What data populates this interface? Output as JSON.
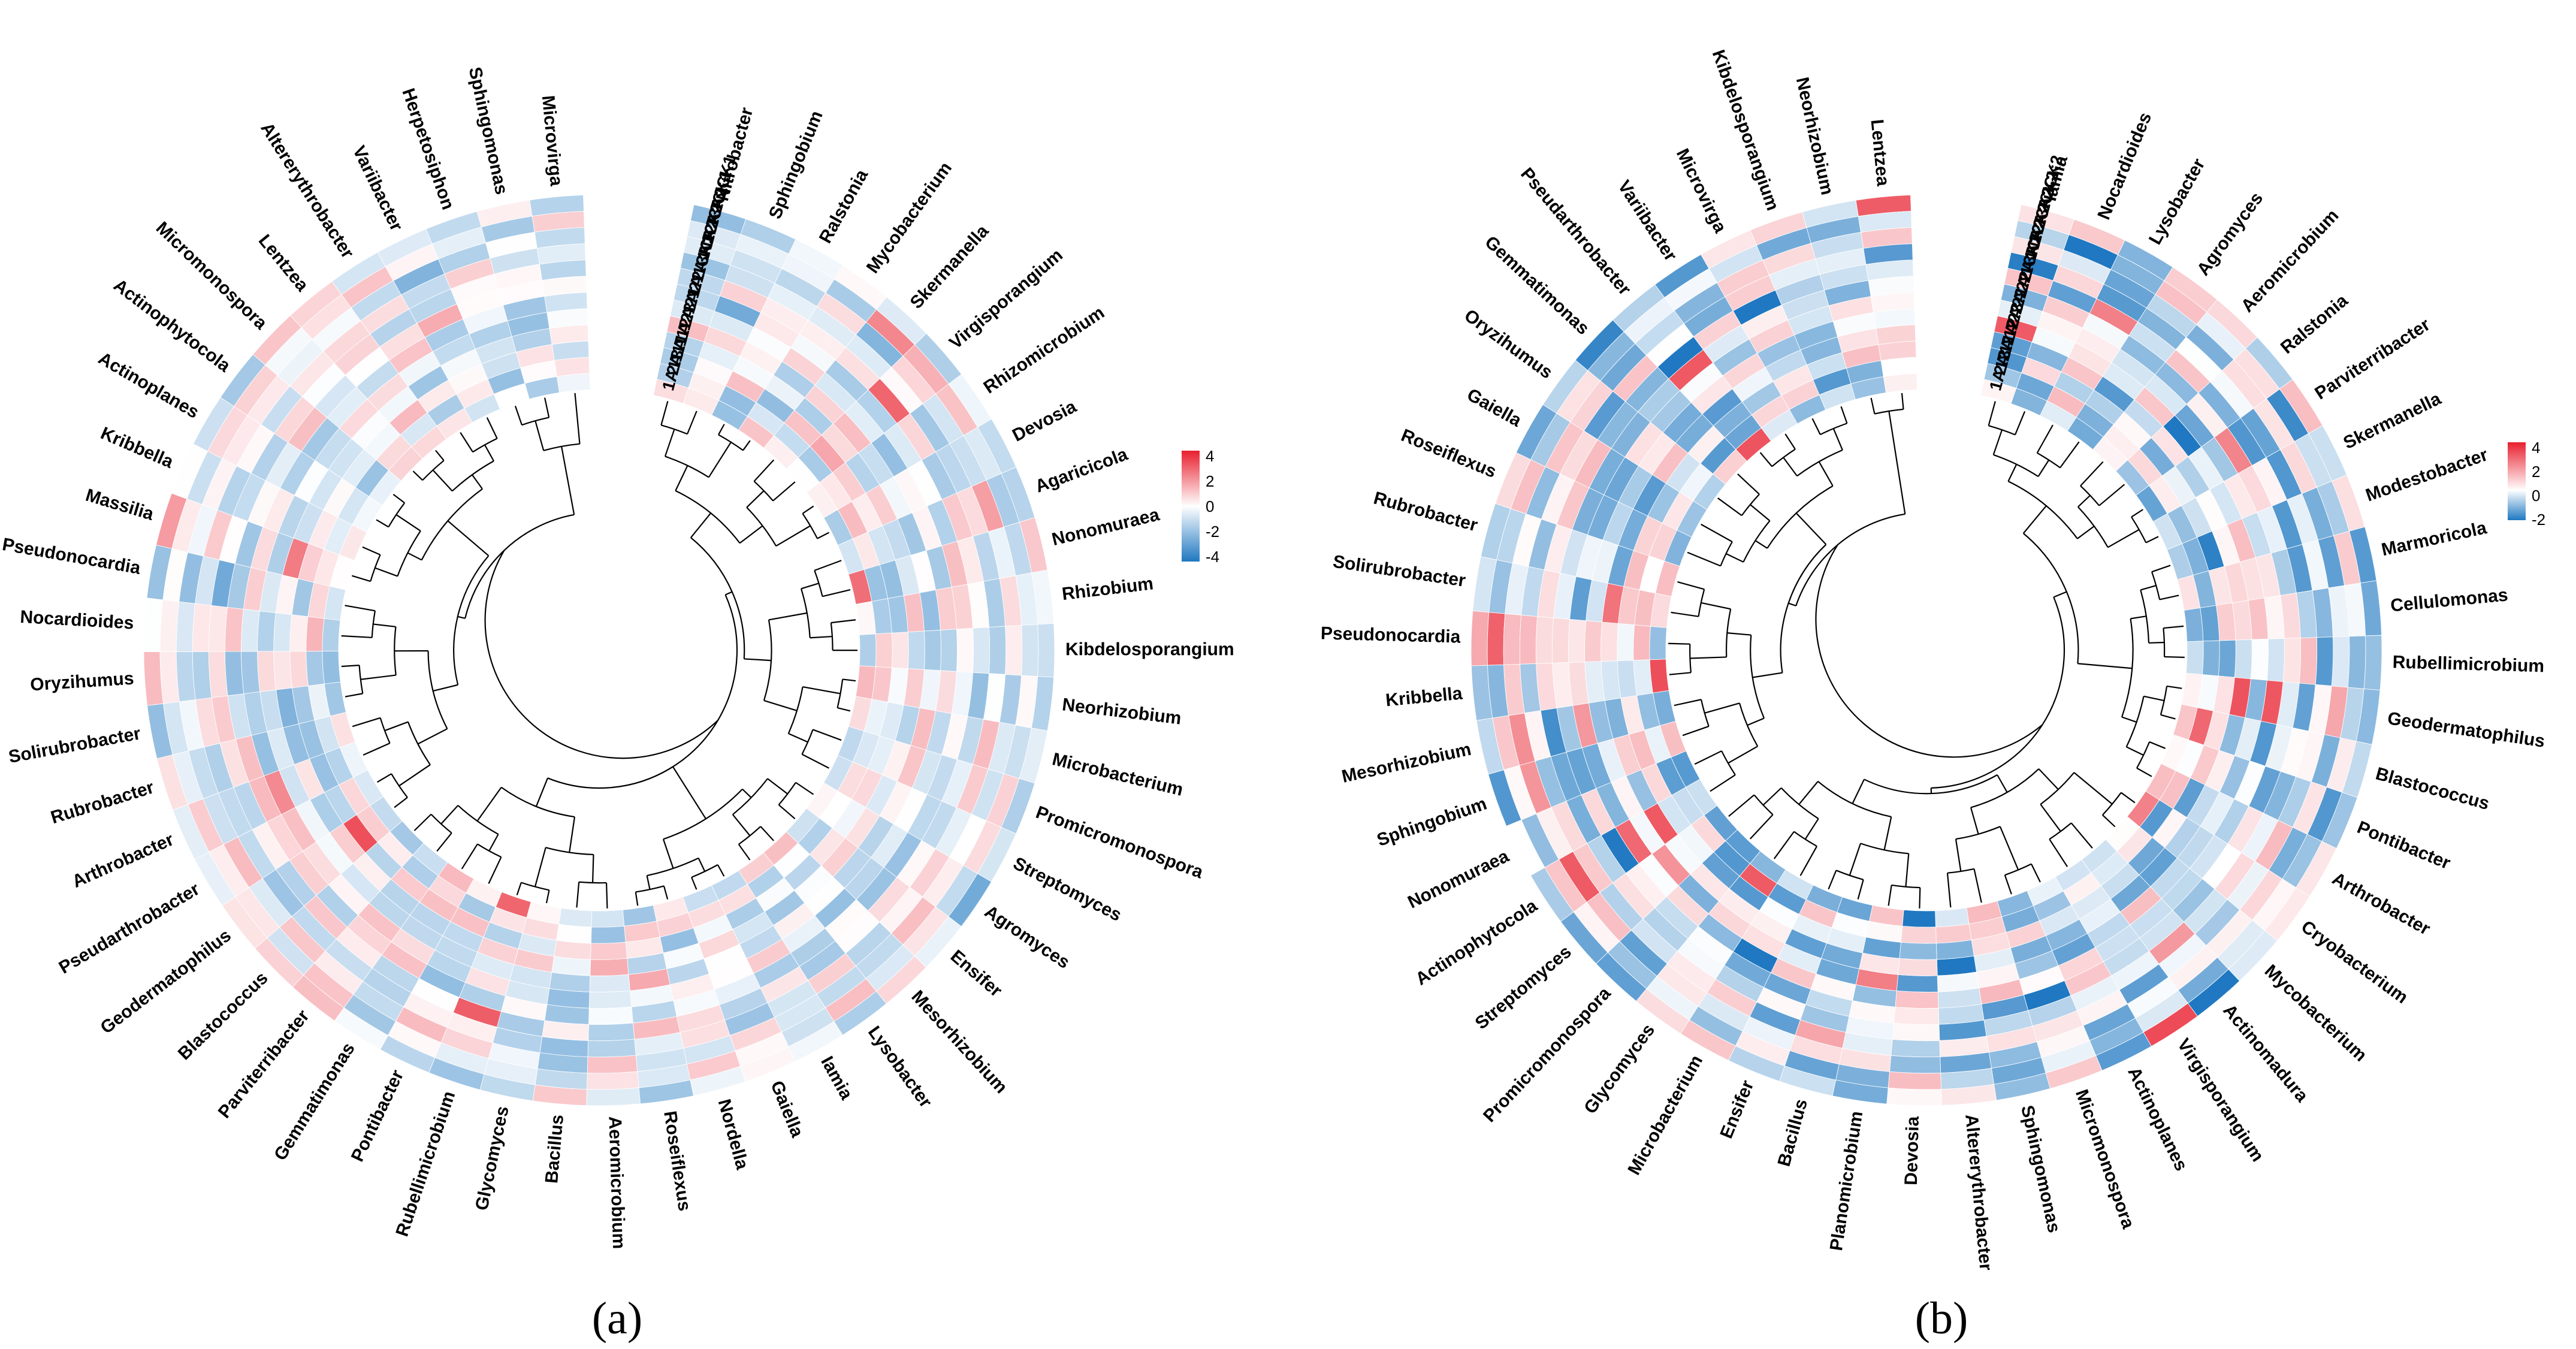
{
  "colors": {
    "neg": "#1f78c1",
    "mid": "#ffffff",
    "pos": "#e8202e",
    "tree": "#000000"
  },
  "chart_data": [
    {
      "type": "heatmap",
      "panel_label": "(a)",
      "legend_ticks": [
        "4",
        "2",
        "0",
        "-2",
        "-4"
      ],
      "legend_range": [
        -4,
        4
      ],
      "samples_outer_to_inner": [
        "3A2CK1",
        "2A2CK1",
        "1A2CK1",
        "3A1CK1",
        "2A1CK1",
        "1A1CK1",
        "3A21",
        "2A21",
        "1A21",
        "3A11",
        "2A11",
        "1A11"
      ],
      "genera": [
        "Nitrobacter",
        "Sphingobium",
        "Ralstonia",
        "Mycobacterium",
        "Skermanella",
        "Virgisporangium",
        "Rhizomicrobium",
        "Devosia",
        "Agaricicola",
        "Nonomuraea",
        "Rhizobium",
        "Kibdelosporangium",
        "Neorhizobium",
        "Microbacterium",
        "Promicromonospora",
        "Streptomyces",
        "Agromyces",
        "Ensifer",
        "Mesorhizobium",
        "Lysobacter",
        "Iamia",
        "Gaiella",
        "Nordella",
        "Roseiflexus",
        "Aeromicrobium",
        "Bacillus",
        "Glycomyces",
        "Rubellimicrobium",
        "Pontibacter",
        "Gemmatimonas",
        "Parviterribacter",
        "Blastococcus",
        "Geodermatophilus",
        "Pseudarthrobacter",
        "Arthrobacter",
        "Rubrobacter",
        "Solirubrobacter",
        "Oryzihumus",
        "Nocardioides",
        "Pseudonocardia",
        "Massilia",
        "Kribbella",
        "Actinoplanes",
        "Actinophytocola",
        "Micromonospora",
        "Lentzea",
        "Altererythrobacter",
        "Variibacter",
        "Herpetosiphon",
        "Sphingomonas",
        "Microvirga"
      ]
    },
    {
      "type": "heatmap",
      "panel_label": "(b)",
      "legend_ticks": [
        "4",
        "2",
        "0",
        "-2"
      ],
      "legend_range": [
        -2.5,
        4
      ],
      "samples_outer_to_inner": [
        "3A2CK2",
        "2A2CK2",
        "1A2CK2",
        "3A1CK2",
        "2A1CK2",
        "1A1CK2",
        "3A22",
        "2A22",
        "1A22",
        "3A12",
        "2A12",
        "1A12"
      ],
      "genera": [
        "Iamia",
        "Nocardioides",
        "Lysobacter",
        "Agromyces",
        "Aeromicrobium",
        "Ralstonia",
        "Parviterribacter",
        "Skermanella",
        "Modestobacter",
        "Marmoricola",
        "Cellulomonas",
        "Rubellimicrobium",
        "Geodermatophilus",
        "Blastococcus",
        "Pontibacter",
        "Arthrobacter",
        "Cryobacterium",
        "Mycobacterium",
        "Actinomadura",
        "Virgisporangium",
        "Actinoplanes",
        "Micromonospora",
        "Sphingomonas",
        "Altererythrobacter",
        "Devosia",
        "Planomicrobium",
        "Bacillus",
        "Ensifer",
        "Microbacterium",
        "Glycomyces",
        "Promicromonospora",
        "Streptomyces",
        "Actinophytocola",
        "Nonomuraea",
        "Sphingobium",
        "Mesorhizobium",
        "Kribbella",
        "Pseudonocardia",
        "Solirubrobacter",
        "Rubrobacter",
        "Roseiflexus",
        "Gaiella",
        "Oryzihumus",
        "Gemmatimonas",
        "Pseudarthrobacter",
        "Variibacter",
        "Microvirga",
        "Kibdelosporangium",
        "Neorhizobium",
        "Lentzea"
      ]
    }
  ]
}
